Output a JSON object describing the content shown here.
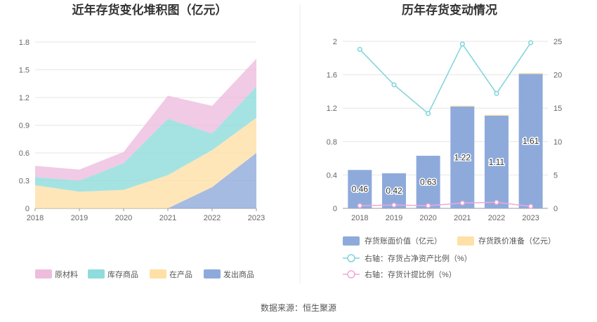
{
  "source_text": "数据来源：恒生聚源",
  "chart_data": [
    {
      "type": "area",
      "stacked": true,
      "title": "近年存货变化堆积图（亿元）",
      "categories": [
        "2018",
        "2019",
        "2020",
        "2021",
        "2022",
        "2023"
      ],
      "ylim": [
        0,
        1.8
      ],
      "yticks": [
        "0",
        "0.3",
        "0.6",
        "0.9",
        "1.2",
        "1.5",
        "1.8"
      ],
      "grid": true,
      "legend_position": "bottom",
      "series": [
        {
          "name": "发出商品",
          "color": "#8eaadb",
          "values": [
            0,
            0,
            0,
            0,
            0.23,
            0.6
          ]
        },
        {
          "name": "在产品",
          "color": "#ffe0a6",
          "values": [
            0.25,
            0.18,
            0.2,
            0.36,
            0.4,
            0.38
          ]
        },
        {
          "name": "库存商品",
          "color": "#8fdcdc",
          "values": [
            0.09,
            0.12,
            0.29,
            0.61,
            0.18,
            0.34
          ]
        },
        {
          "name": "原材料",
          "color": "#eebdde",
          "values": [
            0.12,
            0.12,
            0.12,
            0.25,
            0.3,
            0.3
          ]
        }
      ],
      "legend_order": [
        "原材料",
        "库存商品",
        "在产品",
        "发出商品"
      ]
    },
    {
      "type": "bar+line",
      "title": "历年存货变动情况",
      "categories": [
        "2018",
        "2019",
        "2020",
        "2021",
        "2022",
        "2023"
      ],
      "ylim_left": [
        0,
        2
      ],
      "yticks_left": [
        "0",
        "0.4",
        "0.8",
        "1.2",
        "1.6",
        "2"
      ],
      "ylim_right": [
        0,
        25
      ],
      "yticks_right": [
        "0",
        "5",
        "10",
        "15",
        "20",
        "25"
      ],
      "grid": true,
      "legend_position": "bottom",
      "bars": [
        {
          "name": "存货账面价值（亿元）",
          "color": "#8eaadb",
          "values": [
            0.46,
            0.42,
            0.63,
            1.22,
            1.11,
            1.61
          ],
          "labels": [
            "0.46",
            "0.42",
            "0.63",
            "1.22",
            "1.11",
            "1.61"
          ]
        },
        {
          "name": "存货跌价准备（亿元）",
          "color": "#ffe0a6",
          "values": [
            0,
            0,
            0,
            0.01,
            0.01,
            0.01
          ]
        }
      ],
      "lines": [
        {
          "name": "右轴：存货占净资产比例（%）",
          "color": "#7dd3dc",
          "values": [
            23.8,
            18.5,
            14.2,
            24.6,
            17.2,
            24.8
          ]
        },
        {
          "name": "右轴：存货计提比例（%）",
          "color": "#f0a8d8",
          "values": [
            0.4,
            0.5,
            0.4,
            0.8,
            0.9,
            0.3
          ]
        }
      ]
    }
  ]
}
